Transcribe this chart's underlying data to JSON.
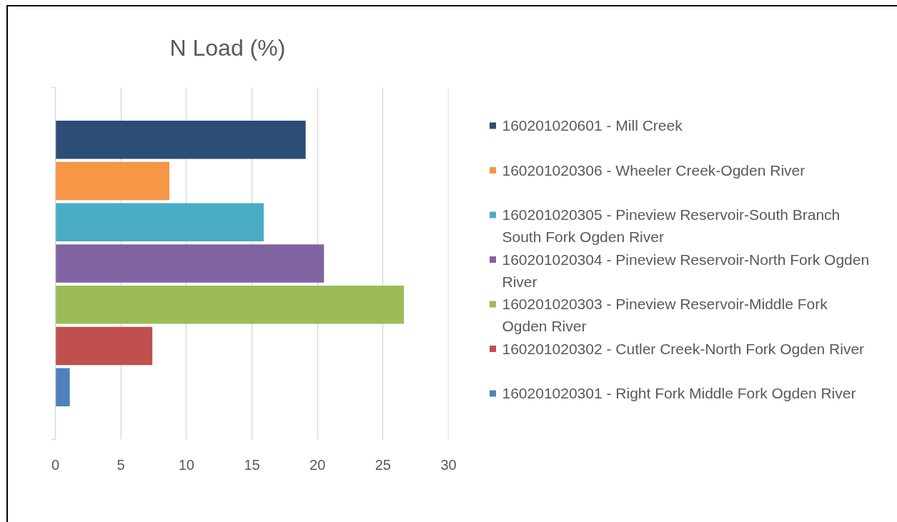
{
  "chart_data": {
    "type": "bar",
    "orientation": "horizontal",
    "title": "N Load (%)",
    "categories": [
      null
    ],
    "series": [
      {
        "name": "160201020601 - Mill Creek",
        "color": "#2c4d75",
        "values": [
          19.1
        ]
      },
      {
        "name": "160201020306 - Wheeler Creek-Ogden River",
        "color": "#f79646",
        "values": [
          8.7
        ]
      },
      {
        "name": "160201020305 - Pineview Reservoir-South Branch South Fork Ogden River",
        "color": "#4bacc6",
        "values": [
          15.9
        ]
      },
      {
        "name": "160201020304 - Pineview Reservoir-North Fork Ogden River",
        "color": "#8064a2",
        "values": [
          20.5
        ]
      },
      {
        "name": "160201020303 - Pineview Reservoir-Middle Fork Ogden River",
        "color": "#9bbb59",
        "values": [
          26.6
        ]
      },
      {
        "name": "160201020302 - Cutler Creek-North Fork Ogden River",
        "color": "#c0504d",
        "values": [
          7.4
        ]
      },
      {
        "name": "160201020301 - Right Fork Middle Fork Ogden River",
        "color": "#4f81bd",
        "values": [
          1.1
        ]
      }
    ],
    "xlim": [
      0,
      30
    ],
    "xticks": [
      0,
      5,
      10,
      15,
      20,
      25,
      30
    ],
    "grid": "x",
    "legend": "right"
  }
}
